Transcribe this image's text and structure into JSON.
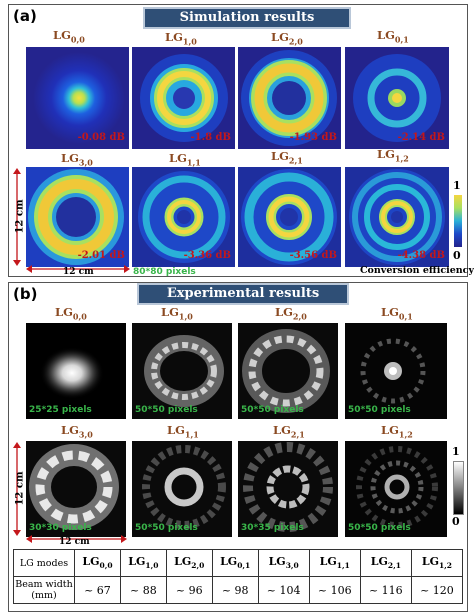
{
  "panel_a": {
    "label": "(a)",
    "title": "Simulation results",
    "modes": [
      {
        "name": "LG",
        "sub": "0,0",
        "loss": "-0.08 dB"
      },
      {
        "name": "LG",
        "sub": "1,0",
        "loss": "-1.8 dB"
      },
      {
        "name": "LG",
        "sub": "2,0",
        "loss": "-1.93 dB"
      },
      {
        "name": "LG",
        "sub": "0,1",
        "loss": "-2.14 dB"
      },
      {
        "name": "LG",
        "sub": "3,0",
        "loss": "-2.01 dB"
      },
      {
        "name": "LG",
        "sub": "1,1",
        "loss": "-3.36 dB"
      },
      {
        "name": "LG",
        "sub": "2,1",
        "loss": "-3.56 dB"
      },
      {
        "name": "LG",
        "sub": "1,2",
        "loss": "-4.38 dB"
      }
    ],
    "size_vertical": "12 cm",
    "size_horizontal": "12 cm",
    "pixels": "80*80 pixels",
    "colorbar_max": "1",
    "colorbar_min": "0",
    "colorbar_label": "Conversion efficiency"
  },
  "panel_b": {
    "label": "(b)",
    "title": "Experimental results",
    "modes": [
      {
        "name": "LG",
        "sub": "0,0",
        "pixels": "25*25 pixels"
      },
      {
        "name": "LG",
        "sub": "1,0",
        "pixels": "50*50 pixels"
      },
      {
        "name": "LG",
        "sub": "2,0",
        "pixels": "50*50 pixels"
      },
      {
        "name": "LG",
        "sub": "0,1",
        "pixels": "50*50 pixels"
      },
      {
        "name": "LG",
        "sub": "3,0",
        "pixels": "30*30 pixels"
      },
      {
        "name": "LG",
        "sub": "1,1",
        "pixels": "50*50 pixels"
      },
      {
        "name": "LG",
        "sub": "2,1",
        "pixels": "30*35 pixels"
      },
      {
        "name": "LG",
        "sub": "1,2",
        "pixels": "50*50 pixels"
      }
    ],
    "size_vertical": "12 cm",
    "size_horizontal": "12 cm",
    "colorbar_max": "1",
    "colorbar_min": "0"
  },
  "table": {
    "row1_header": "LG modes",
    "row2_header_line1": "Beam width",
    "row2_header_line2": "(mm)",
    "columns": [
      {
        "name": "LG",
        "sub": "0,0",
        "width": "~ 67"
      },
      {
        "name": "LG",
        "sub": "1,0",
        "width": "~ 88"
      },
      {
        "name": "LG",
        "sub": "2,0",
        "width": "~ 96"
      },
      {
        "name": "LG",
        "sub": "0,1",
        "width": "~ 98"
      },
      {
        "name": "LG",
        "sub": "3,0",
        "width": "~ 104"
      },
      {
        "name": "LG",
        "sub": "1,1",
        "width": "~ 106"
      },
      {
        "name": "LG",
        "sub": "2,1",
        "width": "~ 116"
      },
      {
        "name": "LG",
        "sub": "1,2",
        "width": "~ 120"
      }
    ]
  },
  "colors": {
    "banner": "#2f4f76",
    "mode_label": "#8b4a22",
    "loss_text": "#c4171b",
    "pixel_text": "#39b54a"
  }
}
